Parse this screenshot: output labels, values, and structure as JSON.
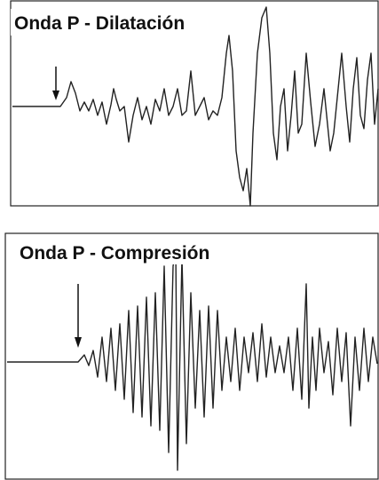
{
  "panels": [
    {
      "title": "Onda P - Dilatación"
    },
    {
      "title": "Onda P - Compresión"
    }
  ]
}
